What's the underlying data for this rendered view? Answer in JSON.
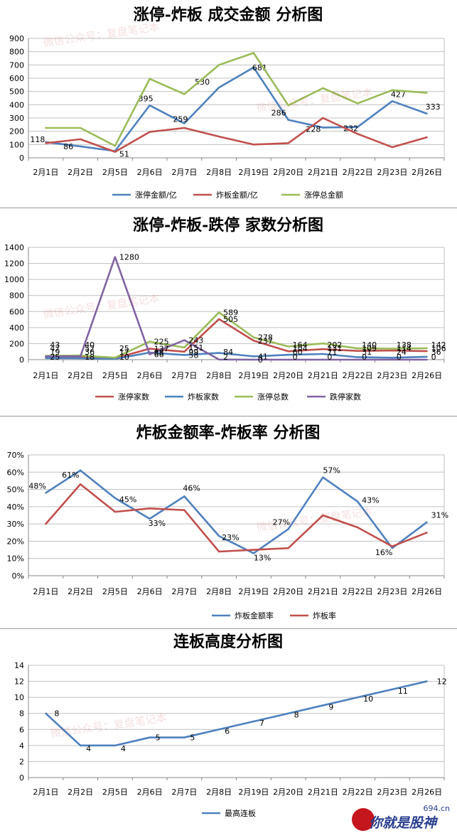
{
  "watermark_texts": [
    "微信公众号：复盘笔记本"
  ],
  "logo": {
    "text": "你就是股神",
    "site": "694.cn",
    "color": "#c4161c"
  },
  "chart_data": [
    {
      "type": "line",
      "title": "涨停-炸板 成交金额 分析图",
      "categories": [
        "2月1日",
        "2月2日",
        "2月5日",
        "2月6日",
        "2月7日",
        "2月8日",
        "2月19日",
        "2月20日",
        "2月21日",
        "2月22日",
        "2月23日",
        "2月26日"
      ],
      "ylim": [
        0,
        900
      ],
      "yticks": [
        0,
        100,
        200,
        300,
        400,
        500,
        600,
        700,
        800,
        900
      ],
      "legend": "bottom",
      "series": [
        {
          "name": "涨停金额/亿",
          "color": "#4f81bd",
          "values": [
            118,
            86,
            51,
            395,
            259,
            530,
            681,
            286,
            228,
            232,
            427,
            333
          ],
          "labels": [
            "118",
            "86",
            "51",
            "395",
            "259",
            "530",
            "681",
            "286",
            "228",
            "232",
            "427",
            "333"
          ]
        },
        {
          "name": "炸板金额/亿",
          "color": "#c0504d",
          "values": [
            110,
            140,
            45,
            195,
            225,
            160,
            100,
            110,
            300,
            180,
            80,
            155
          ]
        },
        {
          "name": "涨停总金额",
          "color": "#9bbb59",
          "values": [
            225,
            225,
            90,
            595,
            480,
            700,
            790,
            395,
            525,
            410,
            510,
            490
          ]
        }
      ]
    },
    {
      "type": "line",
      "title": "涨停-炸板-跌停 家数分析图",
      "categories": [
        "2月1日",
        "2月2日",
        "2月5日",
        "2月6日",
        "2月7日",
        "2月8日",
        "2月19日",
        "2月20日",
        "2月21日",
        "2月22日",
        "2月23日",
        "2月26日"
      ],
      "ylim": [
        0,
        1400
      ],
      "yticks": [
        0,
        200,
        400,
        600,
        800,
        1000,
        1200,
        1400
      ],
      "legend": "bottom",
      "series": [
        {
          "name": "涨停家数",
          "color": "#c0504d",
          "values": [
            25,
            36,
            17,
            137,
            99,
            505,
            237,
            104,
            131,
            109,
            114,
            106
          ]
        },
        {
          "name": "炸板家数",
          "color": "#4f81bd",
          "values": [
            19,
            18,
            10,
            88,
            58,
            84,
            41,
            60,
            71,
            31,
            24,
            36
          ]
        },
        {
          "name": "涨停总数",
          "color": "#9bbb59",
          "values": [
            47,
            52,
            25,
            225,
            151,
            589,
            278,
            164,
            202,
            140,
            138,
            142
          ]
        },
        {
          "name": "跌停家数",
          "color": "#8064a2",
          "values": [
            43,
            40,
            1280,
            66,
            243,
            2,
            0,
            0,
            0,
            0,
            0,
            0
          ]
        }
      ],
      "data_labels": [
        [
          "43",
          "47",
          "19",
          "25"
        ],
        [
          "40",
          "52",
          "36",
          "18"
        ],
        [
          "1280",
          "25",
          "17",
          "10"
        ],
        [
          "225",
          "137",
          "88",
          "66"
        ],
        [
          "243",
          "151",
          "99",
          "58"
        ],
        [
          "589",
          "505",
          "84",
          "2"
        ],
        [
          "278",
          "237",
          "41",
          "0"
        ],
        [
          "164",
          "104",
          "60",
          "0"
        ],
        [
          "202",
          "131",
          "71",
          "0"
        ],
        [
          "140",
          "109",
          "31",
          "0"
        ],
        [
          "138",
          "114",
          "24",
          "0"
        ],
        [
          "142",
          "106",
          "36",
          "0"
        ]
      ]
    },
    {
      "type": "line",
      "title": "炸板金额率-炸板率 分析图",
      "categories": [
        "2月1日",
        "2月2日",
        "2月5日",
        "2月6日",
        "2月7日",
        "2月8日",
        "2月19日",
        "2月20日",
        "2月21日",
        "2月22日",
        "2月23日",
        "2月26日"
      ],
      "ylim": [
        0,
        70
      ],
      "yunit": "%",
      "yticks": [
        "0%",
        "10%",
        "20%",
        "30%",
        "40%",
        "50%",
        "60%",
        "70%"
      ],
      "legend": "bottom",
      "series": [
        {
          "name": "炸板金额率",
          "color": "#4f81bd",
          "values": [
            48,
            61,
            45,
            33,
            46,
            23,
            13,
            27,
            57,
            43,
            16,
            31
          ],
          "labels": [
            "48%",
            "61%",
            "45%",
            "33%",
            "46%",
            "23%",
            "13%",
            "27%",
            "57%",
            "43%",
            "16%",
            "31%"
          ]
        },
        {
          "name": "炸板率",
          "color": "#c0504d",
          "values": [
            30,
            53,
            37,
            39,
            38,
            14,
            15,
            16,
            35,
            28,
            17,
            25
          ]
        }
      ]
    },
    {
      "type": "line",
      "title": "连板高度分析图",
      "categories": [
        "2月1日",
        "2月2日",
        "2月5日",
        "2月6日",
        "2月7日",
        "2月8日",
        "2月19日",
        "2月20日",
        "2月21日",
        "2月22日",
        "2月23日",
        "2月26日"
      ],
      "ylim": [
        0,
        14
      ],
      "yticks": [
        0,
        2,
        4,
        6,
        8,
        10,
        12,
        14
      ],
      "legend": "bottom",
      "series": [
        {
          "name": "最高连板",
          "color": "#4f81bd",
          "values": [
            8,
            4,
            4,
            5,
            5,
            6,
            7,
            8,
            9,
            10,
            11,
            12
          ],
          "labels": [
            "8",
            "4",
            "4",
            "5",
            "5",
            "6",
            "7",
            "8",
            "9",
            "10",
            "11",
            "12"
          ]
        }
      ]
    }
  ]
}
